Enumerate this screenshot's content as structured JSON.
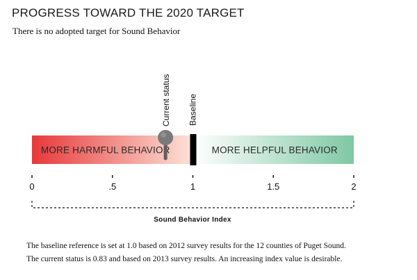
{
  "title": "PROGRESS TOWARD THE 2020 TARGET",
  "subtitle": "There is no adopted target for Sound Behavior",
  "notes": [
    "The baseline reference is set at 1.0 based on 2012 survey results for the 12 counties of Puget Sound.",
    "The current status is 0.83 and based on 2013 survey results. An increasing index value is desirable."
  ],
  "chart_data": {
    "type": "gauge",
    "xlabel": "Sound Behavior Index",
    "xlim": [
      0,
      2
    ],
    "ticks": [
      0,
      0.5,
      1,
      1.5,
      2
    ],
    "tick_labels": [
      "0",
      ".5",
      "1",
      "1.5",
      "2"
    ],
    "zones": [
      {
        "label": "MORE HARMFUL BEHAVIOR",
        "from": 0,
        "to": 1,
        "color_start": "#e8383a",
        "color_end": "#fbe3d8"
      },
      {
        "label": "MORE HELPFUL BEHAVIOR",
        "from": 1,
        "to": 2,
        "color_start": "#ffffff",
        "color_end": "#7fc8a3"
      }
    ],
    "markers": [
      {
        "label": "Current status",
        "value": 0.83,
        "shape": "pin",
        "color": "#7a7a7a"
      },
      {
        "label": "Baseline",
        "value": 1.0,
        "shape": "bar",
        "color": "#000000"
      }
    ]
  }
}
